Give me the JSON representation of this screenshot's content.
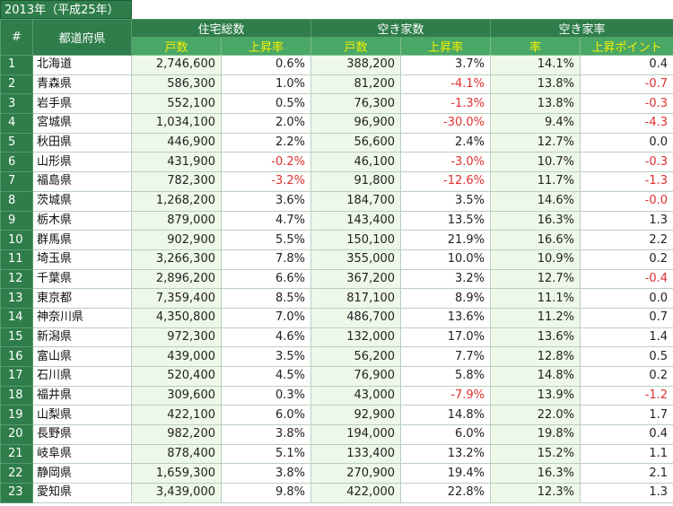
{
  "title": "2013年（平成25年）",
  "headers": {
    "number": "#",
    "prefecture": "都道府県",
    "housing_total": "住宅総数",
    "vacant_count": "空き家数",
    "vacancy_rate": "空き家率",
    "households": "戸数",
    "growth_rate": "上昇率",
    "households2": "戸数",
    "growth_rate2": "上昇率",
    "rate": "率",
    "rise_points": "上昇ポイント"
  },
  "rows": [
    {
      "no": "1",
      "pref": "北海道",
      "total": "2,746,600",
      "total_rate": "0.6%",
      "vacant": "388,200",
      "vacant_rate": "3.7%",
      "rate": "14.1%",
      "points": "0.4"
    },
    {
      "no": "2",
      "pref": "青森県",
      "total": "586,300",
      "total_rate": "1.0%",
      "vacant": "81,200",
      "vacant_rate": "-4.1%",
      "rate": "13.8%",
      "points": "-0.7"
    },
    {
      "no": "3",
      "pref": "岩手県",
      "total": "552,100",
      "total_rate": "0.5%",
      "vacant": "76,300",
      "vacant_rate": "-1.3%",
      "rate": "13.8%",
      "points": "-0.3"
    },
    {
      "no": "4",
      "pref": "宮城県",
      "total": "1,034,100",
      "total_rate": "2.0%",
      "vacant": "96,900",
      "vacant_rate": "-30.0%",
      "rate": "9.4%",
      "points": "-4.3"
    },
    {
      "no": "5",
      "pref": "秋田県",
      "total": "446,900",
      "total_rate": "2.2%",
      "vacant": "56,600",
      "vacant_rate": "2.4%",
      "rate": "12.7%",
      "points": "0.0"
    },
    {
      "no": "6",
      "pref": "山形県",
      "total": "431,900",
      "total_rate": "-0.2%",
      "vacant": "46,100",
      "vacant_rate": "-3.0%",
      "rate": "10.7%",
      "points": "-0.3"
    },
    {
      "no": "7",
      "pref": "福島県",
      "total": "782,300",
      "total_rate": "-3.2%",
      "vacant": "91,800",
      "vacant_rate": "-12.6%",
      "rate": "11.7%",
      "points": "-1.3"
    },
    {
      "no": "8",
      "pref": "茨城県",
      "total": "1,268,200",
      "total_rate": "3.6%",
      "vacant": "184,700",
      "vacant_rate": "3.5%",
      "rate": "14.6%",
      "points": "-0.0"
    },
    {
      "no": "9",
      "pref": "栃木県",
      "total": "879,000",
      "total_rate": "4.7%",
      "vacant": "143,400",
      "vacant_rate": "13.5%",
      "rate": "16.3%",
      "points": "1.3"
    },
    {
      "no": "10",
      "pref": "群馬県",
      "total": "902,900",
      "total_rate": "5.5%",
      "vacant": "150,100",
      "vacant_rate": "21.9%",
      "rate": "16.6%",
      "points": "2.2"
    },
    {
      "no": "11",
      "pref": "埼玉県",
      "total": "3,266,300",
      "total_rate": "7.8%",
      "vacant": "355,000",
      "vacant_rate": "10.0%",
      "rate": "10.9%",
      "points": "0.2"
    },
    {
      "no": "12",
      "pref": "千葉県",
      "total": "2,896,200",
      "total_rate": "6.6%",
      "vacant": "367,200",
      "vacant_rate": "3.2%",
      "rate": "12.7%",
      "points": "-0.4"
    },
    {
      "no": "13",
      "pref": "東京都",
      "total": "7,359,400",
      "total_rate": "8.5%",
      "vacant": "817,100",
      "vacant_rate": "8.9%",
      "rate": "11.1%",
      "points": "0.0"
    },
    {
      "no": "14",
      "pref": "神奈川県",
      "total": "4,350,800",
      "total_rate": "7.0%",
      "vacant": "486,700",
      "vacant_rate": "13.6%",
      "rate": "11.2%",
      "points": "0.7"
    },
    {
      "no": "15",
      "pref": "新潟県",
      "total": "972,300",
      "total_rate": "4.6%",
      "vacant": "132,000",
      "vacant_rate": "17.0%",
      "rate": "13.6%",
      "points": "1.4"
    },
    {
      "no": "16",
      "pref": "富山県",
      "total": "439,000",
      "total_rate": "3.5%",
      "vacant": "56,200",
      "vacant_rate": "7.7%",
      "rate": "12.8%",
      "points": "0.5"
    },
    {
      "no": "17",
      "pref": "石川県",
      "total": "520,400",
      "total_rate": "4.5%",
      "vacant": "76,900",
      "vacant_rate": "5.8%",
      "rate": "14.8%",
      "points": "0.2"
    },
    {
      "no": "18",
      "pref": "福井県",
      "total": "309,600",
      "total_rate": "0.3%",
      "vacant": "43,000",
      "vacant_rate": "-7.9%",
      "rate": "13.9%",
      "points": "-1.2"
    },
    {
      "no": "19",
      "pref": "山梨県",
      "total": "422,100",
      "total_rate": "6.0%",
      "vacant": "92,900",
      "vacant_rate": "14.8%",
      "rate": "22.0%",
      "points": "1.7"
    },
    {
      "no": "20",
      "pref": "長野県",
      "total": "982,200",
      "total_rate": "3.8%",
      "vacant": "194,000",
      "vacant_rate": "6.0%",
      "rate": "19.8%",
      "points": "0.4"
    },
    {
      "no": "21",
      "pref": "岐阜県",
      "total": "878,400",
      "total_rate": "5.1%",
      "vacant": "133,400",
      "vacant_rate": "13.2%",
      "rate": "15.2%",
      "points": "1.1"
    },
    {
      "no": "22",
      "pref": "静岡県",
      "total": "1,659,300",
      "total_rate": "3.8%",
      "vacant": "270,900",
      "vacant_rate": "19.4%",
      "rate": "16.3%",
      "points": "2.1"
    },
    {
      "no": "23",
      "pref": "愛知県",
      "total": "3,439,000",
      "total_rate": "9.8%",
      "vacant": "422,000",
      "vacant_rate": "22.8%",
      "rate": "12.3%",
      "points": "1.3"
    }
  ],
  "colors": {
    "header_dark": "#2e7d4a",
    "header_sub": "#4aa866",
    "header_sub_text": "#f6f000",
    "cell_green": "#eef8e8",
    "negative": "#e03030"
  }
}
